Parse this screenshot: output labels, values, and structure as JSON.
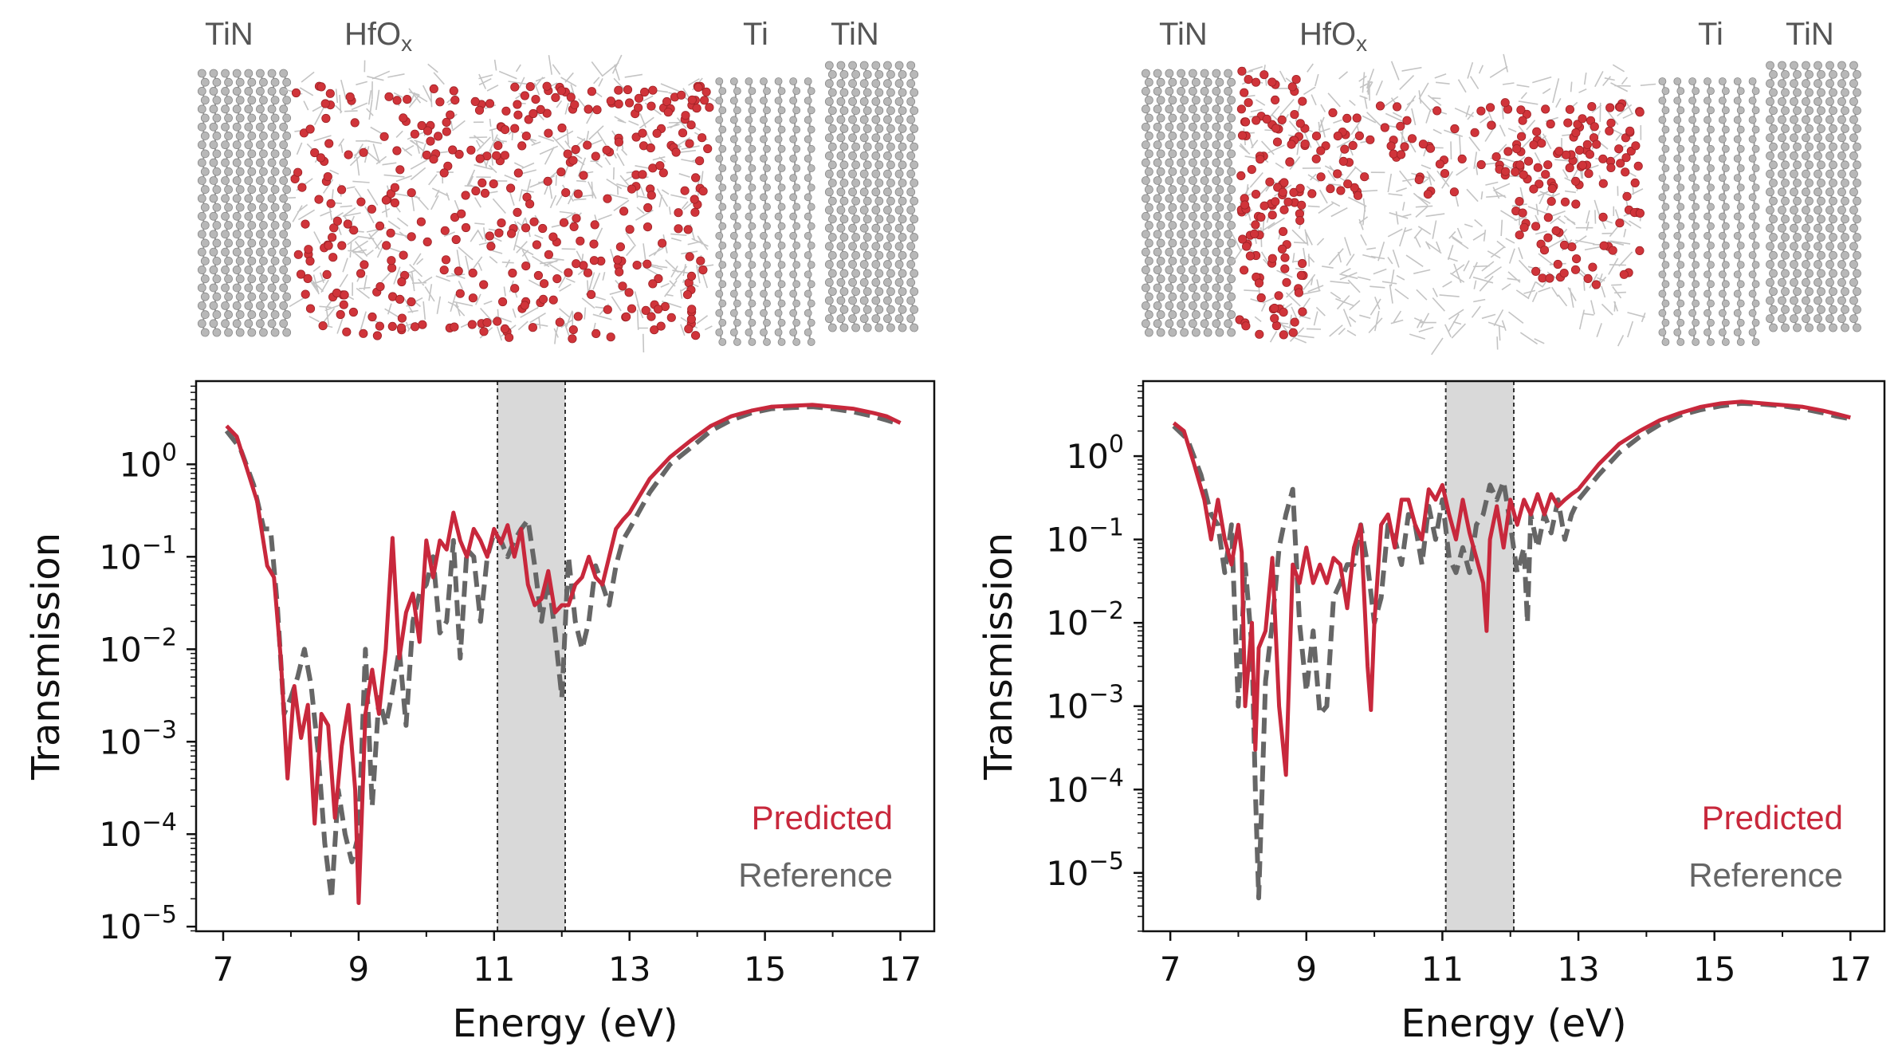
{
  "colors": {
    "predicted": "#c8283c",
    "reference": "#666666",
    "band": "#d9d9d9",
    "atom_gray": "#b8b8b8",
    "oxygen_red": "#d0343a"
  },
  "panels": [
    {
      "structure_labels": [
        "TiN",
        "HfO",
        "x",
        "Ti",
        "TiN"
      ],
      "legend": {
        "predicted": "Predicted",
        "reference": "Reference"
      },
      "chart_data": {
        "type": "line",
        "xlabel": "Energy (eV)",
        "ylabel": "Transmission",
        "xlim": [
          6.6,
          17.5
        ],
        "ylim_log10": [
          -5.05,
          0.9
        ],
        "yscale": "log",
        "xticks": [
          7,
          9,
          11,
          13,
          15,
          17
        ],
        "yticks": [
          {
            "base": "10",
            "exp": "0",
            "v": 0
          },
          {
            "base": "10",
            "exp": "−1",
            "v": -1
          },
          {
            "base": "10",
            "exp": "−2",
            "v": -2
          },
          {
            "base": "10",
            "exp": "−3",
            "v": -3
          },
          {
            "base": "10",
            "exp": "−4",
            "v": -4
          },
          {
            "base": "10",
            "exp": "−5",
            "v": -5
          }
        ],
        "shaded_band": [
          11.05,
          12.05
        ],
        "series": [
          {
            "name": "Predicted",
            "x": [
              7.05,
              7.2,
              7.35,
              7.5,
              7.65,
              7.75,
              7.85,
              7.95,
              8.05,
              8.15,
              8.25,
              8.35,
              8.45,
              8.55,
              8.65,
              8.75,
              8.85,
              8.95,
              9.0,
              9.1,
              9.2,
              9.3,
              9.4,
              9.5,
              9.6,
              9.7,
              9.8,
              9.9,
              10.0,
              10.1,
              10.2,
              10.3,
              10.4,
              10.5,
              10.6,
              10.7,
              10.8,
              10.9,
              11.0,
              11.1,
              11.2,
              11.3,
              11.4,
              11.5,
              11.6,
              11.7,
              11.8,
              11.9,
              12.0,
              12.1,
              12.2,
              12.3,
              12.4,
              12.5,
              12.6,
              12.7,
              12.8,
              12.9,
              13.0,
              13.3,
              13.6,
              13.9,
              14.2,
              14.5,
              14.8,
              15.1,
              15.4,
              15.7,
              16.0,
              16.3,
              16.6,
              16.8,
              17.0
            ],
            "y": [
              2.6,
              2.0,
              0.9,
              0.4,
              0.08,
              0.06,
              0.008,
              0.0004,
              0.004,
              0.0011,
              0.0025,
              0.00013,
              0.002,
              0.0015,
              0.00015,
              0.0009,
              0.0025,
              0.0003,
              1.8e-05,
              0.002,
              0.006,
              0.002,
              0.01,
              0.16,
              0.008,
              0.025,
              0.04,
              0.012,
              0.15,
              0.06,
              0.15,
              0.12,
              0.3,
              0.15,
              0.1,
              0.2,
              0.15,
              0.1,
              0.2,
              0.14,
              0.22,
              0.1,
              0.2,
              0.05,
              0.03,
              0.035,
              0.07,
              0.025,
              0.03,
              0.03,
              0.05,
              0.06,
              0.1,
              0.06,
              0.05,
              0.1,
              0.2,
              0.25,
              0.3,
              0.7,
              1.2,
              1.8,
              2.6,
              3.3,
              3.8,
              4.2,
              4.3,
              4.4,
              4.2,
              4.0,
              3.6,
              3.3,
              2.8
            ]
          },
          {
            "name": "Reference",
            "x": [
              7.05,
              7.25,
              7.45,
              7.6,
              7.7,
              7.8,
              7.9,
              8.0,
              8.1,
              8.2,
              8.3,
              8.4,
              8.5,
              8.6,
              8.7,
              8.8,
              8.9,
              9.0,
              9.1,
              9.2,
              9.3,
              9.4,
              9.5,
              9.6,
              9.7,
              9.8,
              9.9,
              10.0,
              10.1,
              10.2,
              10.3,
              10.4,
              10.5,
              10.6,
              10.7,
              10.8,
              10.9,
              11.0,
              11.1,
              11.2,
              11.3,
              11.4,
              11.5,
              11.6,
              11.7,
              11.8,
              11.9,
              12.0,
              12.1,
              12.2,
              12.3,
              12.4,
              12.5,
              12.6,
              12.7,
              12.8,
              12.9,
              13.0,
              13.3,
              13.6,
              13.9,
              14.2,
              14.5,
              14.8,
              15.1,
              15.4,
              15.7,
              16.0,
              16.3,
              16.6,
              16.8,
              17.0
            ],
            "y": [
              2.3,
              1.5,
              0.6,
              0.2,
              0.2,
              0.03,
              0.002,
              0.003,
              0.005,
              0.01,
              0.004,
              0.0008,
              8e-05,
              2e-05,
              0.0003,
              0.0001,
              5e-05,
              0.0001,
              0.01,
              0.0002,
              0.003,
              0.0015,
              0.0035,
              0.01,
              0.0015,
              0.02,
              0.04,
              0.05,
              0.1,
              0.015,
              0.02,
              0.15,
              0.008,
              0.12,
              0.1,
              0.02,
              0.1,
              0.18,
              0.15,
              0.1,
              0.15,
              0.2,
              0.25,
              0.08,
              0.02,
              0.06,
              0.015,
              0.003,
              0.1,
              0.02,
              0.01,
              0.02,
              0.08,
              0.05,
              0.03,
              0.08,
              0.15,
              0.2,
              0.5,
              1.0,
              1.5,
              2.3,
              3.0,
              3.6,
              4.0,
              4.1,
              4.2,
              4.0,
              3.7,
              3.3,
              3.0,
              2.7
            ]
          }
        ]
      }
    },
    {
      "structure_labels": [
        "TiN",
        "HfO",
        "x",
        "Ti",
        "TiN"
      ],
      "legend": {
        "predicted": "Predicted",
        "reference": "Reference"
      },
      "chart_data": {
        "type": "line",
        "xlabel": "Energy (eV)",
        "ylabel": "Transmission",
        "xlim": [
          6.6,
          17.5
        ],
        "ylim_log10": [
          -5.7,
          0.9
        ],
        "yscale": "log",
        "xticks": [
          7,
          9,
          11,
          13,
          15,
          17
        ],
        "yticks": [
          {
            "base": "10",
            "exp": "0",
            "v": 0
          },
          {
            "base": "10",
            "exp": "−1",
            "v": -1
          },
          {
            "base": "10",
            "exp": "−2",
            "v": -2
          },
          {
            "base": "10",
            "exp": "−3",
            "v": -3
          },
          {
            "base": "10",
            "exp": "−4",
            "v": -4
          },
          {
            "base": "10",
            "exp": "−5",
            "v": -5
          }
        ],
        "shaded_band": [
          11.05,
          12.05
        ],
        "series": [
          {
            "name": "Predicted",
            "x": [
              7.05,
              7.2,
              7.35,
              7.5,
              7.6,
              7.7,
              7.8,
              7.9,
              8.0,
              8.05,
              8.1,
              8.2,
              8.25,
              8.3,
              8.4,
              8.5,
              8.6,
              8.7,
              8.8,
              8.9,
              9.0,
              9.1,
              9.2,
              9.3,
              9.4,
              9.5,
              9.6,
              9.7,
              9.8,
              9.9,
              9.95,
              10.0,
              10.1,
              10.2,
              10.3,
              10.4,
              10.5,
              10.6,
              10.7,
              10.8,
              10.9,
              11.0,
              11.1,
              11.2,
              11.3,
              11.4,
              11.5,
              11.6,
              11.65,
              11.7,
              11.8,
              11.9,
              12.0,
              12.1,
              12.2,
              12.3,
              12.4,
              12.5,
              12.6,
              12.7,
              12.8,
              12.9,
              13.0,
              13.3,
              13.6,
              13.9,
              14.2,
              14.5,
              14.8,
              15.1,
              15.4,
              15.7,
              16.0,
              16.3,
              16.6,
              16.8,
              17.0
            ],
            "y": [
              2.5,
              2.0,
              0.8,
              0.3,
              0.1,
              0.3,
              0.1,
              0.05,
              0.15,
              0.07,
              0.001,
              0.01,
              0.0003,
              0.005,
              0.008,
              0.06,
              0.001,
              0.00015,
              0.05,
              0.03,
              0.08,
              0.03,
              0.05,
              0.03,
              0.06,
              0.05,
              0.015,
              0.08,
              0.15,
              0.003,
              0.0009,
              0.01,
              0.15,
              0.2,
              0.08,
              0.3,
              0.3,
              0.15,
              0.1,
              0.4,
              0.3,
              0.45,
              0.2,
              0.1,
              0.3,
              0.12,
              0.06,
              0.03,
              0.008,
              0.1,
              0.25,
              0.08,
              0.3,
              0.15,
              0.3,
              0.2,
              0.35,
              0.2,
              0.35,
              0.25,
              0.3,
              0.35,
              0.4,
              0.8,
              1.4,
              2.0,
              2.7,
              3.3,
              3.9,
              4.3,
              4.5,
              4.3,
              4.1,
              3.9,
              3.5,
              3.2,
              2.9
            ]
          },
          {
            "name": "Reference",
            "x": [
              7.05,
              7.25,
              7.45,
              7.6,
              7.7,
              7.8,
              7.9,
              8.0,
              8.1,
              8.2,
              8.25,
              8.3,
              8.35,
              8.4,
              8.5,
              8.6,
              8.7,
              8.8,
              8.9,
              9.0,
              9.1,
              9.2,
              9.3,
              9.4,
              9.5,
              9.6,
              9.7,
              9.8,
              9.9,
              10.0,
              10.1,
              10.2,
              10.3,
              10.4,
              10.5,
              10.6,
              10.7,
              10.8,
              10.9,
              11.0,
              11.1,
              11.2,
              11.3,
              11.4,
              11.5,
              11.6,
              11.7,
              11.8,
              11.9,
              12.0,
              12.1,
              12.2,
              12.25,
              12.3,
              12.4,
              12.5,
              12.6,
              12.7,
              12.8,
              12.9,
              13.0,
              13.3,
              13.6,
              13.9,
              14.2,
              14.5,
              14.8,
              15.1,
              15.4,
              15.7,
              16.0,
              16.3,
              16.6,
              16.8,
              17.0
            ],
            "y": [
              2.3,
              1.6,
              0.6,
              0.2,
              0.15,
              0.04,
              0.15,
              0.001,
              0.05,
              0.005,
              0.0001,
              5e-06,
              0.0001,
              0.002,
              0.01,
              0.08,
              0.2,
              0.4,
              0.01,
              0.0015,
              0.008,
              0.0008,
              0.001,
              0.02,
              0.03,
              0.05,
              0.05,
              0.15,
              0.05,
              0.01,
              0.02,
              0.15,
              0.1,
              0.05,
              0.2,
              0.15,
              0.05,
              0.25,
              0.1,
              0.3,
              0.06,
              0.04,
              0.08,
              0.04,
              0.15,
              0.2,
              0.45,
              0.3,
              0.5,
              0.15,
              0.04,
              0.08,
              0.01,
              0.2,
              0.08,
              0.2,
              0.12,
              0.3,
              0.1,
              0.2,
              0.3,
              0.6,
              1.1,
              1.7,
              2.4,
              3.1,
              3.6,
              4.0,
              4.3,
              4.2,
              4.0,
              3.7,
              3.3,
              3.0,
              2.8
            ]
          }
        ]
      }
    }
  ]
}
